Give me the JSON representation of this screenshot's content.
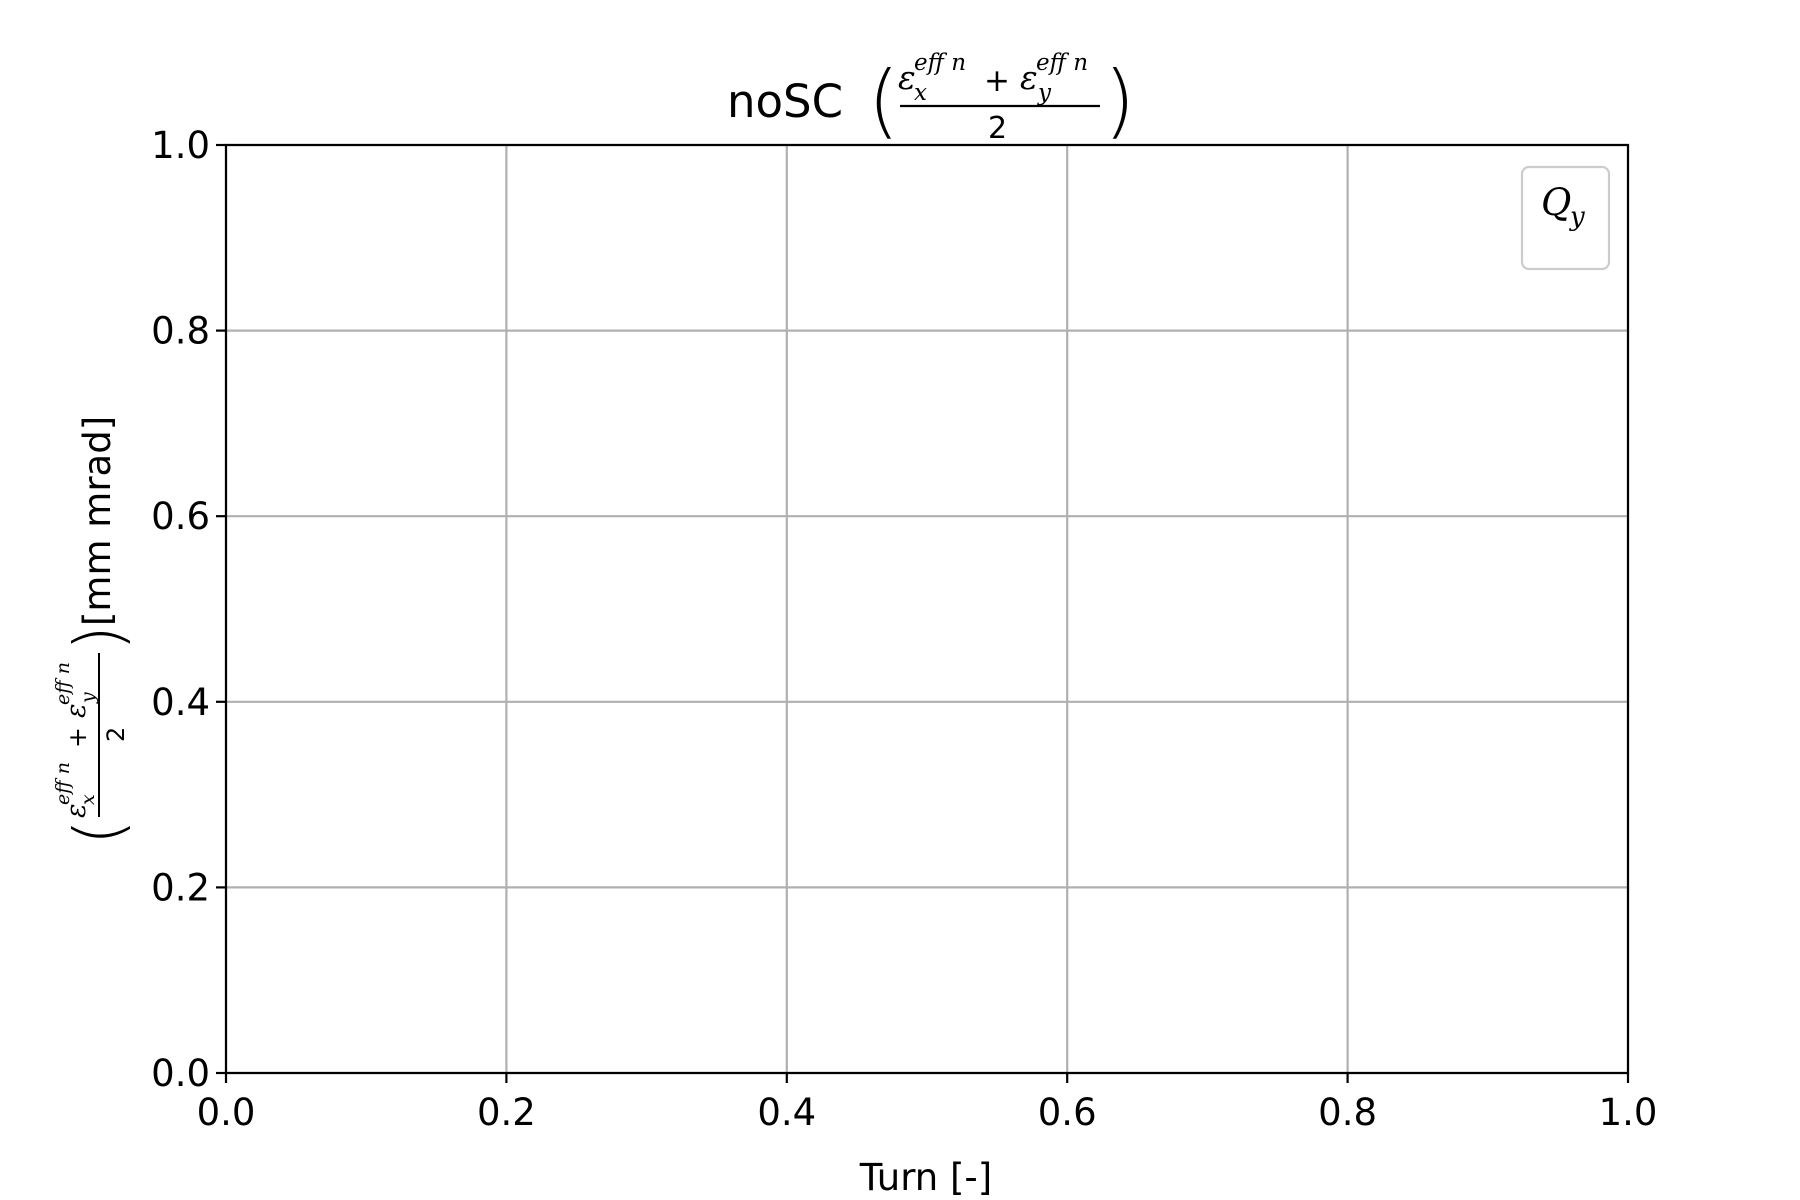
{
  "chart_data": {
    "type": "line",
    "title_prefix": "noSC",
    "title": "noSC (εxeff n + εyeff n)/2",
    "xlabel": "Turn [-]",
    "ylabel": "((εxeff n + εyeff n)/2) [mm mrad]",
    "ylabel_unit": "[mm mrad]",
    "math": {
      "epsilon": "ε",
      "sup": "eff n",
      "sub_x": "x",
      "sub_y": "y",
      "plus": "+",
      "denominator": "2"
    },
    "xlim": [
      0.0,
      1.0
    ],
    "ylim": [
      0.0,
      1.0
    ],
    "x_ticks": [
      0.0,
      0.2,
      0.4,
      0.6,
      0.8,
      1.0
    ],
    "y_ticks": [
      0.0,
      0.2,
      0.4,
      0.6,
      0.8,
      1.0
    ],
    "x_tick_labels": [
      "0.0",
      "0.2",
      "0.4",
      "0.6",
      "0.8",
      "1.0"
    ],
    "y_tick_labels": [
      "0.0",
      "0.2",
      "0.4",
      "0.6",
      "0.8",
      "1.0"
    ],
    "grid": true,
    "legend_placement": "top-right",
    "legend": {
      "symbol": "Q",
      "subscript": "y"
    },
    "series": [
      {
        "name": "Q_y",
        "x": [],
        "y": []
      }
    ],
    "colors": {
      "grid": "#b0b0b0",
      "axes": "#000000",
      "legend_border": "#cccccc"
    }
  }
}
